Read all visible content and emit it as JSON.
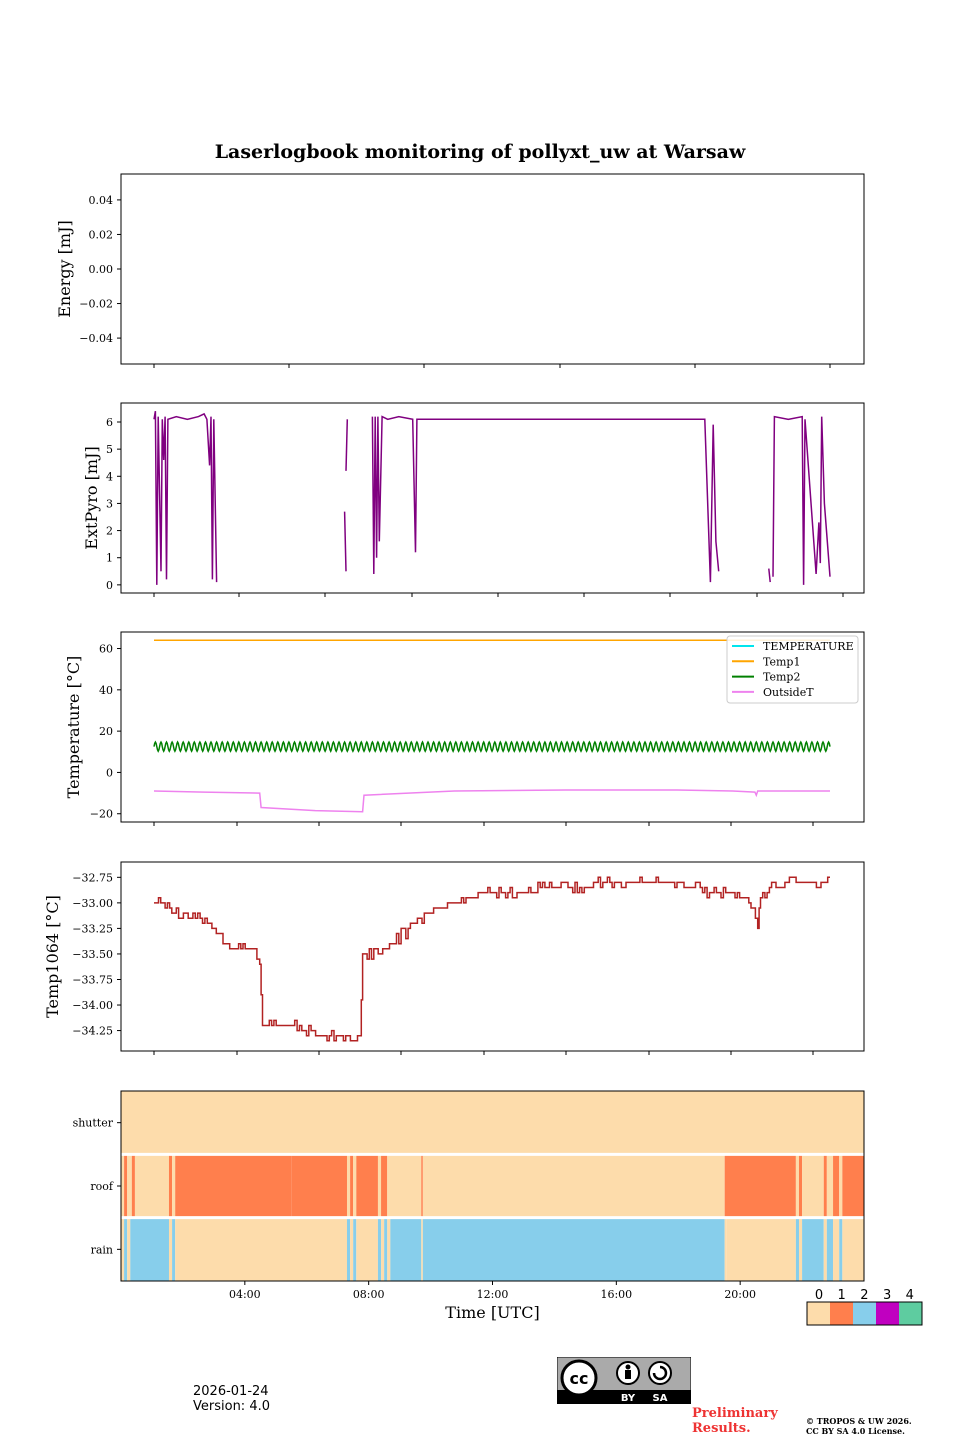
{
  "title": "Laserlogbook monitoring of pollyxt_uw at Warsaw",
  "footer": {
    "date": "2026-01-24",
    "version": "Version: 4.0",
    "preliminary": "Preliminary Results.",
    "copyright_line1": "© TROPOS & UW 2026.",
    "copyright_line2": "CC BY SA 4.0 License.",
    "cc_labels": [
      "cc",
      "BY",
      "SA"
    ]
  },
  "colors": {
    "energy": "#800080",
    "extpyro": "#800080",
    "TEMPERATURE": "#00e5ee",
    "Temp1": "#ffa500",
    "Temp2": "#008000",
    "OutsideT": "#ee82ee",
    "temp1064": "#b22222"
  },
  "chart_data": [
    {
      "id": "energy",
      "type": "line",
      "ylabel": "Energy [mJ]",
      "ylim": [
        -0.055,
        0.055
      ],
      "yticks": [
        0.04,
        0.02,
        0.0,
        -0.02,
        -0.04
      ],
      "ytick_labels": [
        "0.04",
        "0.02",
        "0.00",
        "−0.02",
        "−0.04"
      ],
      "xlim": [
        0,
        26
      ],
      "series": []
    },
    {
      "id": "extpyro",
      "type": "line",
      "ylabel": "ExtPyro [mJ]",
      "ylim": [
        -0.3,
        6.7
      ],
      "yticks": [
        0,
        1,
        2,
        3,
        4,
        5,
        6
      ],
      "ytick_labels": [
        "0",
        "1",
        "2",
        "3",
        "4",
        "5",
        "6"
      ],
      "xlim": [
        0,
        26
      ],
      "series": [
        {
          "name": "ExtPyro",
          "segments": [
            [
              [
                1.2,
                6.1
              ],
              [
                1.25,
                6.4
              ],
              [
                1.3,
                0.0
              ],
              [
                1.35,
                6.2
              ],
              [
                1.45,
                0.5
              ],
              [
                1.5,
                6.1
              ],
              [
                1.55,
                4.6
              ],
              [
                1.6,
                6.2
              ],
              [
                1.65,
                0.2
              ],
              [
                1.7,
                6.1
              ],
              [
                2.0,
                6.2
              ],
              [
                2.4,
                6.1
              ],
              [
                2.8,
                6.2
              ],
              [
                3.0,
                6.3
              ],
              [
                3.1,
                6.1
              ],
              [
                3.2,
                4.4
              ],
              [
                3.25,
                6.2
              ],
              [
                3.3,
                0.2
              ],
              [
                3.35,
                6.1
              ],
              [
                3.45,
                0.1
              ]
            ],
            [
              [
                8.05,
                2.7
              ],
              [
                8.1,
                0.5
              ]
            ],
            [
              [
                8.1,
                4.2
              ],
              [
                8.15,
                6.1
              ]
            ],
            [
              [
                9.05,
                6.2
              ],
              [
                9.1,
                0.4
              ],
              [
                9.15,
                6.2
              ],
              [
                9.2,
                1.0
              ],
              [
                9.25,
                6.2
              ],
              [
                9.3,
                1.6
              ],
              [
                9.4,
                6.2
              ],
              [
                9.6,
                6.1
              ],
              [
                10.0,
                6.2
              ],
              [
                10.5,
                6.1
              ],
              [
                10.6,
                1.2
              ],
              [
                10.65,
                6.1
              ],
              [
                12.0,
                6.1
              ],
              [
                14.0,
                6.1
              ],
              [
                16.0,
                6.1
              ],
              [
                18.0,
                6.1
              ],
              [
                19.5,
                6.1
              ],
              [
                21.0,
                6.1
              ],
              [
                21.2,
                0.1
              ],
              [
                21.3,
                5.9
              ],
              [
                21.4,
                1.6
              ],
              [
                21.5,
                0.5
              ]
            ],
            [
              [
                23.3,
                0.6
              ],
              [
                23.35,
                0.1
              ]
            ],
            [
              [
                23.45,
                0.3
              ],
              [
                23.5,
                6.2
              ],
              [
                24.0,
                6.1
              ],
              [
                24.5,
                6.2
              ],
              [
                24.55,
                0.0
              ],
              [
                24.6,
                6.1
              ],
              [
                25.0,
                0.4
              ],
              [
                25.1,
                2.3
              ],
              [
                25.15,
                0.8
              ],
              [
                25.2,
                6.2
              ],
              [
                25.3,
                3.0
              ],
              [
                25.5,
                0.3
              ]
            ]
          ]
        }
      ]
    },
    {
      "id": "temperature",
      "type": "line",
      "ylabel": "Temperature [°C]",
      "ylim": [
        -24,
        68
      ],
      "yticks": [
        60,
        40,
        20,
        0,
        -20
      ],
      "ytick_labels": [
        "60",
        "40",
        "20",
        "0",
        "−20"
      ],
      "xlim": [
        0,
        26
      ],
      "legend": [
        "TEMPERATURE",
        "Temp1",
        "Temp2",
        "OutsideT"
      ],
      "legend_position": "top-right",
      "series": [
        {
          "name": "TEMPERATURE",
          "points": []
        },
        {
          "name": "Temp1",
          "points": [
            [
              1.2,
              64
            ],
            [
              25.5,
              64
            ]
          ]
        },
        {
          "name": "Temp2",
          "oscillation": {
            "start": 1.2,
            "end": 25.5,
            "mean": 12.5,
            "amplitude": 2.2,
            "period": 0.2
          }
        },
        {
          "name": "OutsideT",
          "points": [
            [
              1.2,
              -9
            ],
            [
              3,
              -9.5
            ],
            [
              5,
              -10
            ],
            [
              5.05,
              -17
            ],
            [
              7,
              -18.5
            ],
            [
              8.7,
              -19
            ],
            [
              8.75,
              -11
            ],
            [
              12,
              -9
            ],
            [
              16,
              -8.5
            ],
            [
              20,
              -8.5
            ],
            [
              22,
              -9
            ],
            [
              22.8,
              -9.5
            ],
            [
              22.85,
              -11
            ],
            [
              22.9,
              -9
            ],
            [
              25.5,
              -9
            ]
          ]
        }
      ]
    },
    {
      "id": "temp1064",
      "type": "line",
      "ylabel": "Temp1064 [°C]",
      "ylim": [
        -34.45,
        -32.6
      ],
      "yticks": [
        -32.75,
        -33.0,
        -33.25,
        -33.5,
        -33.75,
        -34.0,
        -34.25
      ],
      "ytick_labels": [
        "−32.75",
        "−33.00",
        "−33.25",
        "−33.50",
        "−33.75",
        "−34.00",
        "−34.25"
      ],
      "xlim": [
        0,
        26
      ],
      "series": [
        {
          "name": "Temp1064",
          "points": [
            [
              1.2,
              -33.0
            ],
            [
              1.6,
              -33.0
            ],
            [
              2.0,
              -33.1
            ],
            [
              2.6,
              -33.15
            ],
            [
              3.2,
              -33.2
            ],
            [
              3.6,
              -33.3
            ],
            [
              4.0,
              -33.45
            ],
            [
              4.8,
              -33.45
            ],
            [
              5.0,
              -33.6
            ],
            [
              5.1,
              -34.2
            ],
            [
              6.0,
              -34.2
            ],
            [
              6.6,
              -34.25
            ],
            [
              7.5,
              -34.3
            ],
            [
              8.6,
              -34.35
            ],
            [
              8.7,
              -33.55
            ],
            [
              9.5,
              -33.45
            ],
            [
              10.0,
              -33.35
            ],
            [
              10.5,
              -33.2
            ],
            [
              11.0,
              -33.1
            ],
            [
              11.5,
              -33.05
            ],
            [
              12.0,
              -33.0
            ],
            [
              12.5,
              -32.95
            ],
            [
              13.2,
              -32.9
            ],
            [
              14.0,
              -32.9
            ],
            [
              16.0,
              -32.85
            ],
            [
              18.0,
              -32.8
            ],
            [
              19.5,
              -32.8
            ],
            [
              20.5,
              -32.85
            ],
            [
              21.5,
              -32.9
            ],
            [
              22.5,
              -32.95
            ],
            [
              22.9,
              -33.2
            ],
            [
              23.0,
              -32.9
            ],
            [
              23.8,
              -32.85
            ],
            [
              24.2,
              -32.8
            ],
            [
              25.5,
              -32.8
            ]
          ]
        }
      ]
    },
    {
      "id": "status",
      "type": "heatmap",
      "rows": [
        "shutter",
        "roof",
        "rain"
      ],
      "colorbar_ticks": [
        "0",
        "1",
        "2",
        "3",
        "4"
      ],
      "colorbar_colors": [
        "#fddcab",
        "#ff7f4d",
        "#87ceeb",
        "#c000c0",
        "#5ecca0"
      ],
      "xlabel": "Time [UTC]",
      "xticks": [
        4,
        8,
        12,
        16,
        20
      ],
      "xtick_labels": [
        "04:00",
        "08:00",
        "12:00",
        "16:00",
        "20:00"
      ],
      "xlim": [
        0,
        24
      ],
      "intervals": {
        "shutter": [
          [
            0,
            24,
            0
          ]
        ],
        "roof": [
          [
            0,
            0.1,
            0
          ],
          [
            0.1,
            0.2,
            1
          ],
          [
            0.2,
            0.35,
            0
          ],
          [
            0.35,
            0.45,
            1
          ],
          [
            0.45,
            1.55,
            0
          ],
          [
            1.55,
            1.65,
            1
          ],
          [
            1.65,
            1.75,
            0
          ],
          [
            1.75,
            5.5,
            1
          ],
          [
            5.5,
            7.3,
            1
          ],
          [
            7.3,
            7.4,
            0
          ],
          [
            7.4,
            7.5,
            1
          ],
          [
            7.5,
            7.6,
            0
          ],
          [
            7.6,
            8.3,
            1
          ],
          [
            8.3,
            8.4,
            0
          ],
          [
            8.4,
            8.6,
            1
          ],
          [
            8.6,
            9.7,
            0
          ],
          [
            9.7,
            9.75,
            1
          ],
          [
            9.75,
            19.5,
            0
          ],
          [
            19.5,
            21.8,
            1
          ],
          [
            21.8,
            21.9,
            0
          ],
          [
            21.9,
            22.0,
            1
          ],
          [
            22.0,
            22.7,
            0
          ],
          [
            22.7,
            22.8,
            1
          ],
          [
            22.8,
            23.0,
            0
          ],
          [
            23.0,
            23.2,
            1
          ],
          [
            23.2,
            23.3,
            0
          ],
          [
            23.3,
            24,
            1
          ]
        ],
        "rain": [
          [
            0,
            0.1,
            0
          ],
          [
            0.1,
            0.2,
            2
          ],
          [
            0.2,
            0.3,
            0
          ],
          [
            0.3,
            1.55,
            2
          ],
          [
            1.55,
            1.65,
            0
          ],
          [
            1.65,
            1.75,
            2
          ],
          [
            1.75,
            7.3,
            0
          ],
          [
            7.3,
            7.4,
            2
          ],
          [
            7.4,
            7.5,
            0
          ],
          [
            7.5,
            7.6,
            2
          ],
          [
            7.6,
            8.3,
            0
          ],
          [
            8.3,
            8.4,
            2
          ],
          [
            8.4,
            8.5,
            0
          ],
          [
            8.5,
            8.6,
            2
          ],
          [
            8.6,
            8.7,
            0
          ],
          [
            8.7,
            9.7,
            2
          ],
          [
            9.7,
            9.75,
            0
          ],
          [
            9.75,
            19.5,
            2
          ],
          [
            19.5,
            19.55,
            0
          ],
          [
            19.55,
            21.8,
            0
          ],
          [
            21.8,
            21.9,
            2
          ],
          [
            21.9,
            22.0,
            0
          ],
          [
            22.0,
            22.7,
            2
          ],
          [
            22.7,
            22.8,
            0
          ],
          [
            22.8,
            23.0,
            2
          ],
          [
            23.0,
            23.2,
            0
          ],
          [
            23.2,
            23.3,
            2
          ],
          [
            23.3,
            24,
            0
          ]
        ]
      }
    }
  ]
}
